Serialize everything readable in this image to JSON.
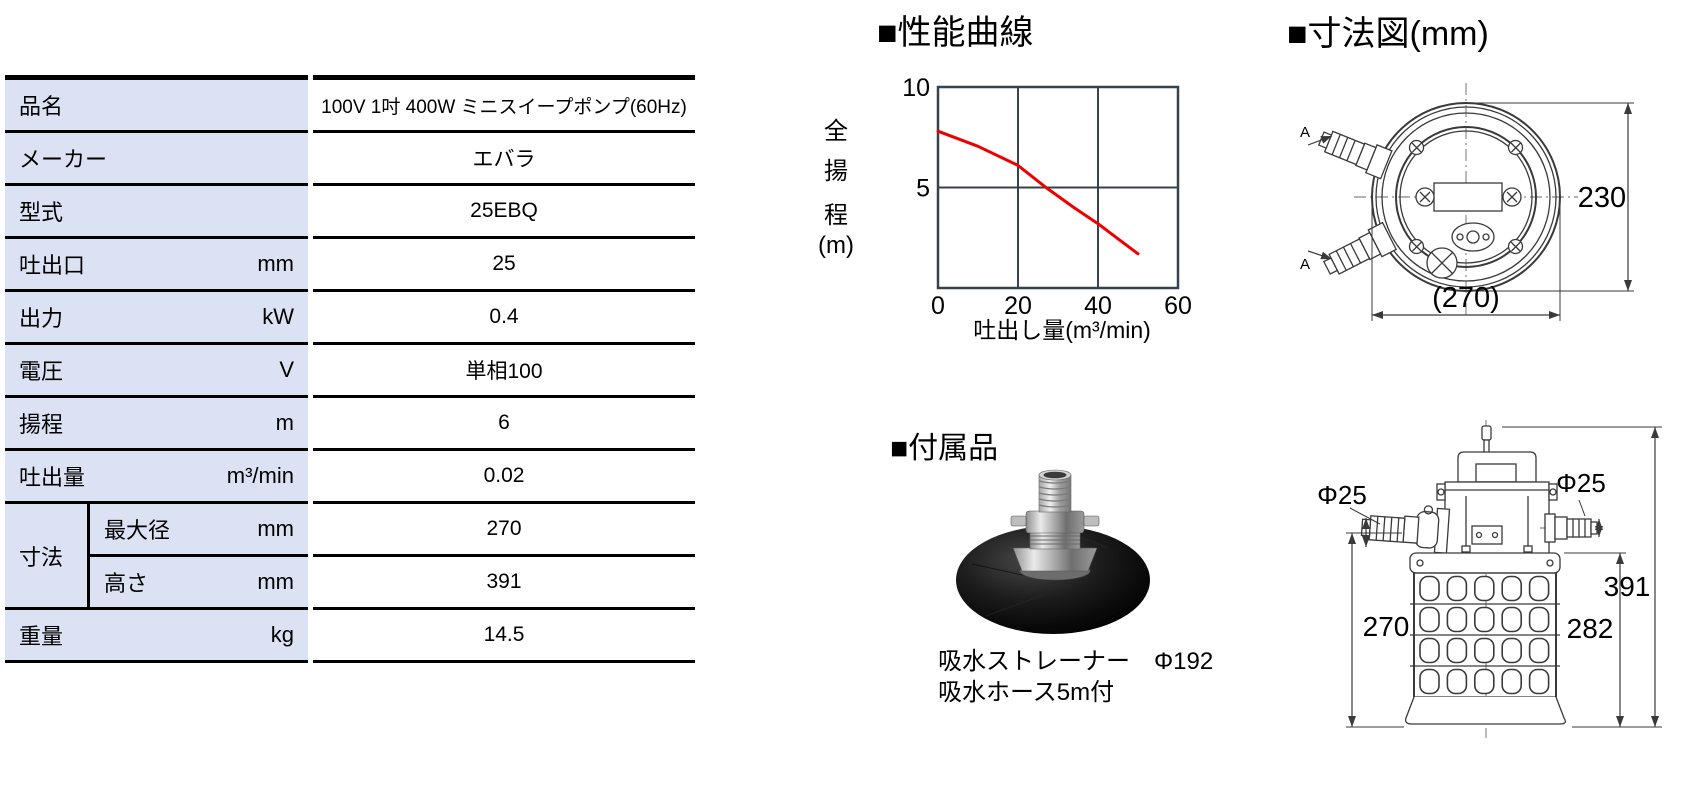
{
  "spec_table": {
    "rows": [
      {
        "label": "品名",
        "unit": "",
        "value": "100V 1吋 400W ミニスイープポンプ(60Hz)"
      },
      {
        "label": "メーカー",
        "unit": "",
        "value": "エバラ"
      },
      {
        "label": "型式",
        "unit": "",
        "value": "25EBQ"
      },
      {
        "label": "吐出口",
        "unit": "mm",
        "value": "25"
      },
      {
        "label": "出力",
        "unit": "kW",
        "value": "0.4"
      },
      {
        "label": "電圧",
        "unit": "V",
        "value": "単相100"
      },
      {
        "label": "揚程",
        "unit": "m",
        "value": "6"
      },
      {
        "label": "吐出量",
        "unit": "m³/min",
        "value": "0.02"
      },
      {
        "label": "最大径",
        "unit": "mm",
        "value": "270",
        "group": "寸法"
      },
      {
        "label": "高さ",
        "unit": "mm",
        "value": "391",
        "group": "寸法"
      },
      {
        "label": "重量",
        "unit": "kg",
        "value": "14.5"
      }
    ],
    "label_bg_color": "#dbe2f3"
  },
  "performance": {
    "heading": "■性能曲線"
  },
  "chart_data": {
    "type": "line",
    "title": "性能曲線",
    "xlabel": "吐出し量(m³/min)",
    "ylabel": "全揚程(m)",
    "ylabel_chars": [
      "全",
      "揚",
      "程",
      "(m)"
    ],
    "xlim": [
      0,
      60
    ],
    "ylim": [
      0,
      10
    ],
    "x_ticks": [
      "0",
      "20",
      "40",
      "60"
    ],
    "y_ticks": [
      {
        "value": 10,
        "label": "10"
      },
      {
        "value": 5,
        "label": "5"
      }
    ],
    "grid_x": [
      20,
      40
    ],
    "grid_y": [
      5
    ],
    "line_color": "#ee0000",
    "frame_color": "#37424c",
    "legend": "none",
    "points": [
      [
        0,
        7.8
      ],
      [
        10,
        7.05
      ],
      [
        20,
        6.1
      ],
      [
        27,
        5.0
      ],
      [
        34,
        4.0
      ],
      [
        40,
        3.2
      ],
      [
        45,
        2.45
      ],
      [
        50,
        1.7
      ]
    ]
  },
  "accessories": {
    "heading": "■付属品",
    "photo": "suction-strainer-photo",
    "lines": [
      "吸水ストレーナー　Φ192",
      "吸水ホース5m付"
    ]
  },
  "dimensions": {
    "heading": "■寸法図(mm)",
    "top_view": {
      "height_label": "230",
      "width_label": "(270)",
      "section_label": "A"
    },
    "front_view": {
      "left_port_label": "Φ25",
      "right_port_label": "Φ25",
      "total_height_label": "391",
      "body_height_label": "282",
      "left_height_label": "270"
    }
  }
}
